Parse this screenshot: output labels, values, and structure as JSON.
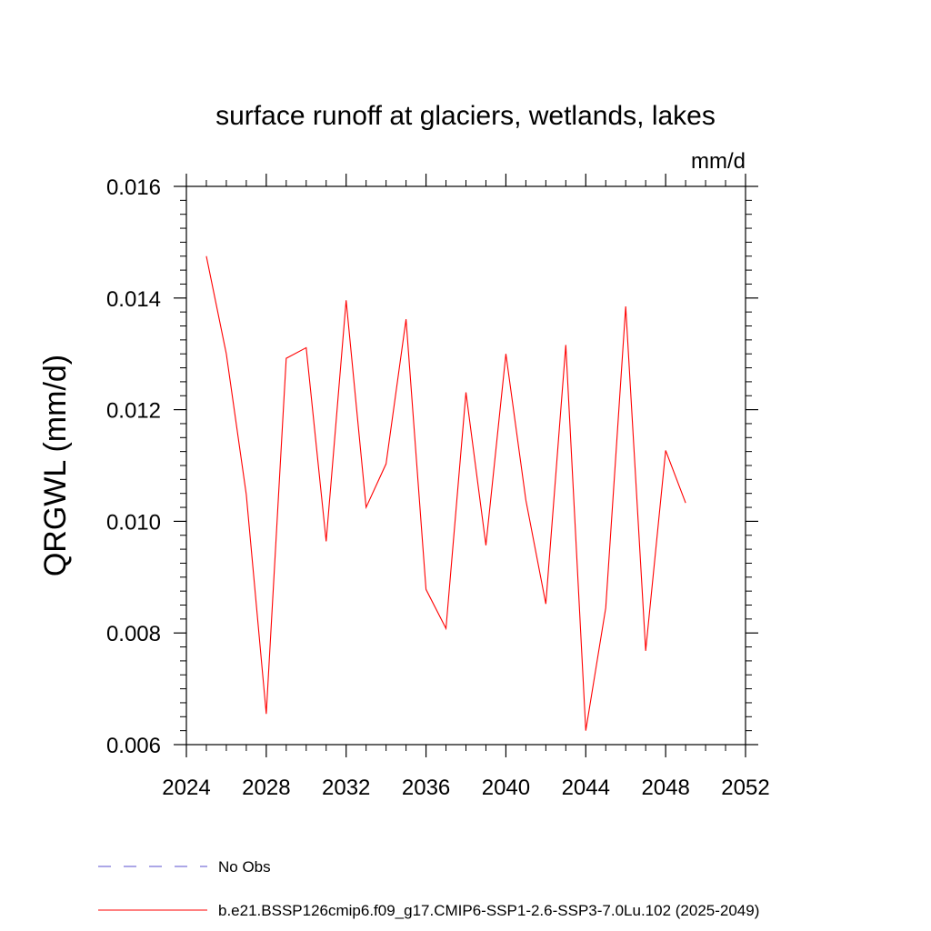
{
  "chart_data": {
    "type": "line",
    "title": "surface runoff at glaciers, wetlands, lakes",
    "units": "mm/d",
    "ylabel": "QRGWL  (mm/d)",
    "xlabel": "",
    "xlim": [
      2024,
      2052
    ],
    "ylim": [
      0.006,
      0.016
    ],
    "xticks": [
      "2024",
      "2028",
      "2032",
      "2036",
      "2040",
      "2044",
      "2048",
      "2052"
    ],
    "xtick_values": [
      2024,
      2028,
      2032,
      2036,
      2040,
      2044,
      2048,
      2052
    ],
    "yticks": [
      "0.006",
      "0.008",
      "0.010",
      "0.012",
      "0.014",
      "0.016"
    ],
    "ytick_values": [
      0.006,
      0.008,
      0.01,
      0.012,
      0.014,
      0.016
    ],
    "grid": false,
    "legend_position": "bottom",
    "series": [
      {
        "name": "b.e21.BSSP126cmip6.f09_g17.CMIP6-SSP1-2.6-SSP3-7.0Lu.102 (2025-2049)",
        "color": "#ff0000",
        "style": "solid",
        "x": [
          2025,
          2026,
          2027,
          2028,
          2029,
          2030,
          2031,
          2032,
          2033,
          2034,
          2035,
          2036,
          2037,
          2038,
          2039,
          2040,
          2041,
          2042,
          2043,
          2044,
          2045,
          2046,
          2047,
          2048,
          2049
        ],
        "y": [
          0.01475,
          0.013,
          0.01048,
          0.00655,
          0.01292,
          0.01311,
          0.00964,
          0.01396,
          0.01025,
          0.01103,
          0.01362,
          0.00878,
          0.00808,
          0.01231,
          0.00957,
          0.013,
          0.01038,
          0.00852,
          0.01316,
          0.00625,
          0.00845,
          0.01385,
          0.00768,
          0.01127,
          0.01033
        ]
      }
    ],
    "legend": [
      {
        "label": "No Obs",
        "color": "#5a4fcf",
        "style": "dashed"
      },
      {
        "label": "b.e21.BSSP126cmip6.f09_g17.CMIP6-SSP1-2.6-SSP3-7.0Lu.102 (2025-2049)",
        "color": "#ff0000",
        "style": "solid"
      }
    ]
  }
}
